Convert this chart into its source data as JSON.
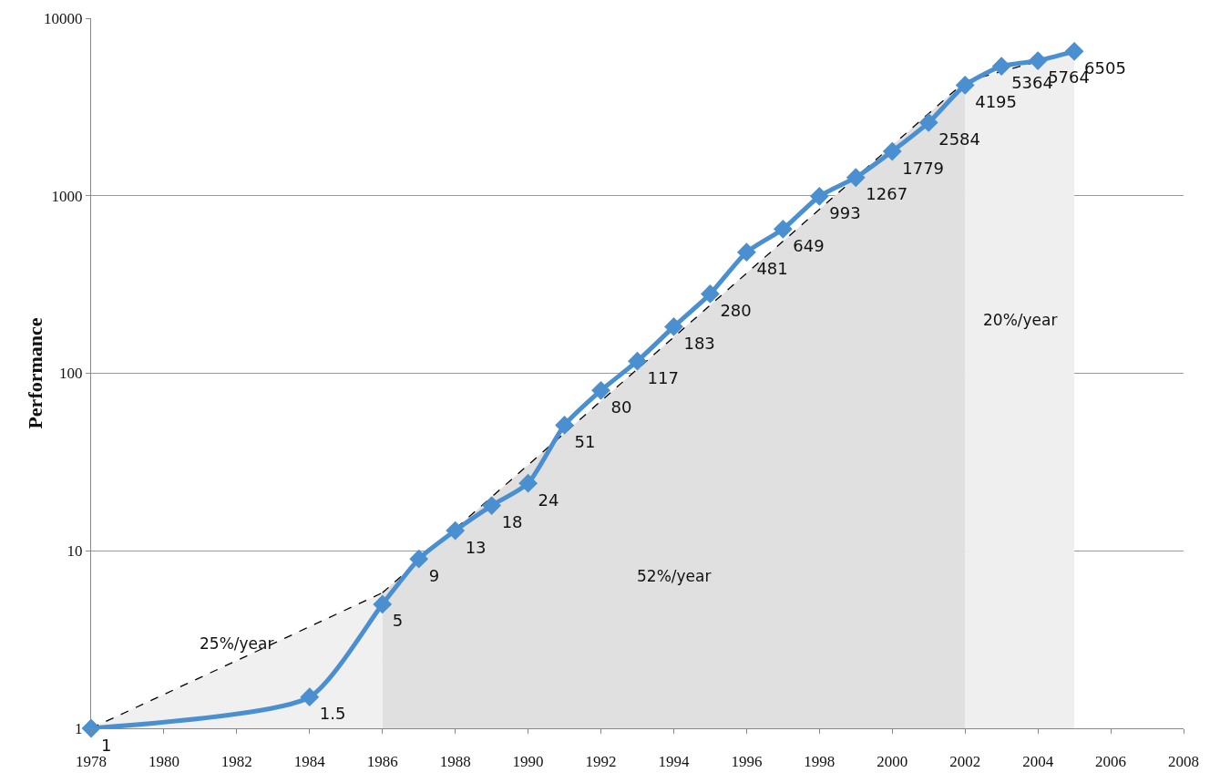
{
  "chart_data": {
    "type": "line",
    "ylabel": "Performance",
    "x": [
      1978,
      1984,
      1986,
      1987,
      1988,
      1989,
      1990,
      1991,
      1992,
      1993,
      1994,
      1995,
      1996,
      1997,
      1998,
      1999,
      2000,
      2001,
      2002,
      2003,
      2004,
      2005
    ],
    "series": [
      {
        "type": "area",
        "color": "#f0f0f0",
        "line_style": "dashed",
        "marker": "none",
        "x": [
          1978,
          1986
        ],
        "values": [
          1,
          5.8
        ]
      },
      {
        "type": "area",
        "color": "#e0e0e0",
        "line_style": "dashed",
        "marker": "none",
        "x": [
          1986,
          2002
        ],
        "values": [
          5.8,
          4400
        ]
      },
      {
        "type": "area",
        "color": "#efefef",
        "line_style": "dashed",
        "marker": "none",
        "x": [
          2002,
          2005
        ],
        "values": [
          4400,
          6505
        ]
      },
      {
        "color": "#4a90d0",
        "line_style": "solid",
        "marker": "diamond",
        "data_labels": true,
        "values": [
          1,
          1.5,
          5,
          9,
          13,
          18,
          24,
          51,
          80,
          117,
          183,
          280,
          481,
          649,
          993,
          1267,
          1779,
          2584,
          4195,
          5364,
          5764,
          6505
        ]
      }
    ],
    "annotations": [
      "25%/year",
      "52%/year",
      "20%/year"
    ],
    "xlim": [
      1978,
      2008
    ],
    "xticks": [
      1978,
      1980,
      1982,
      1984,
      1986,
      1988,
      1990,
      1992,
      1994,
      1996,
      1998,
      2000,
      2002,
      2004,
      2006,
      2008
    ],
    "ylim": [
      1,
      10000
    ],
    "yticks": [
      1,
      10,
      100,
      1000,
      10000
    ],
    "log": "y",
    "grid": "y"
  }
}
